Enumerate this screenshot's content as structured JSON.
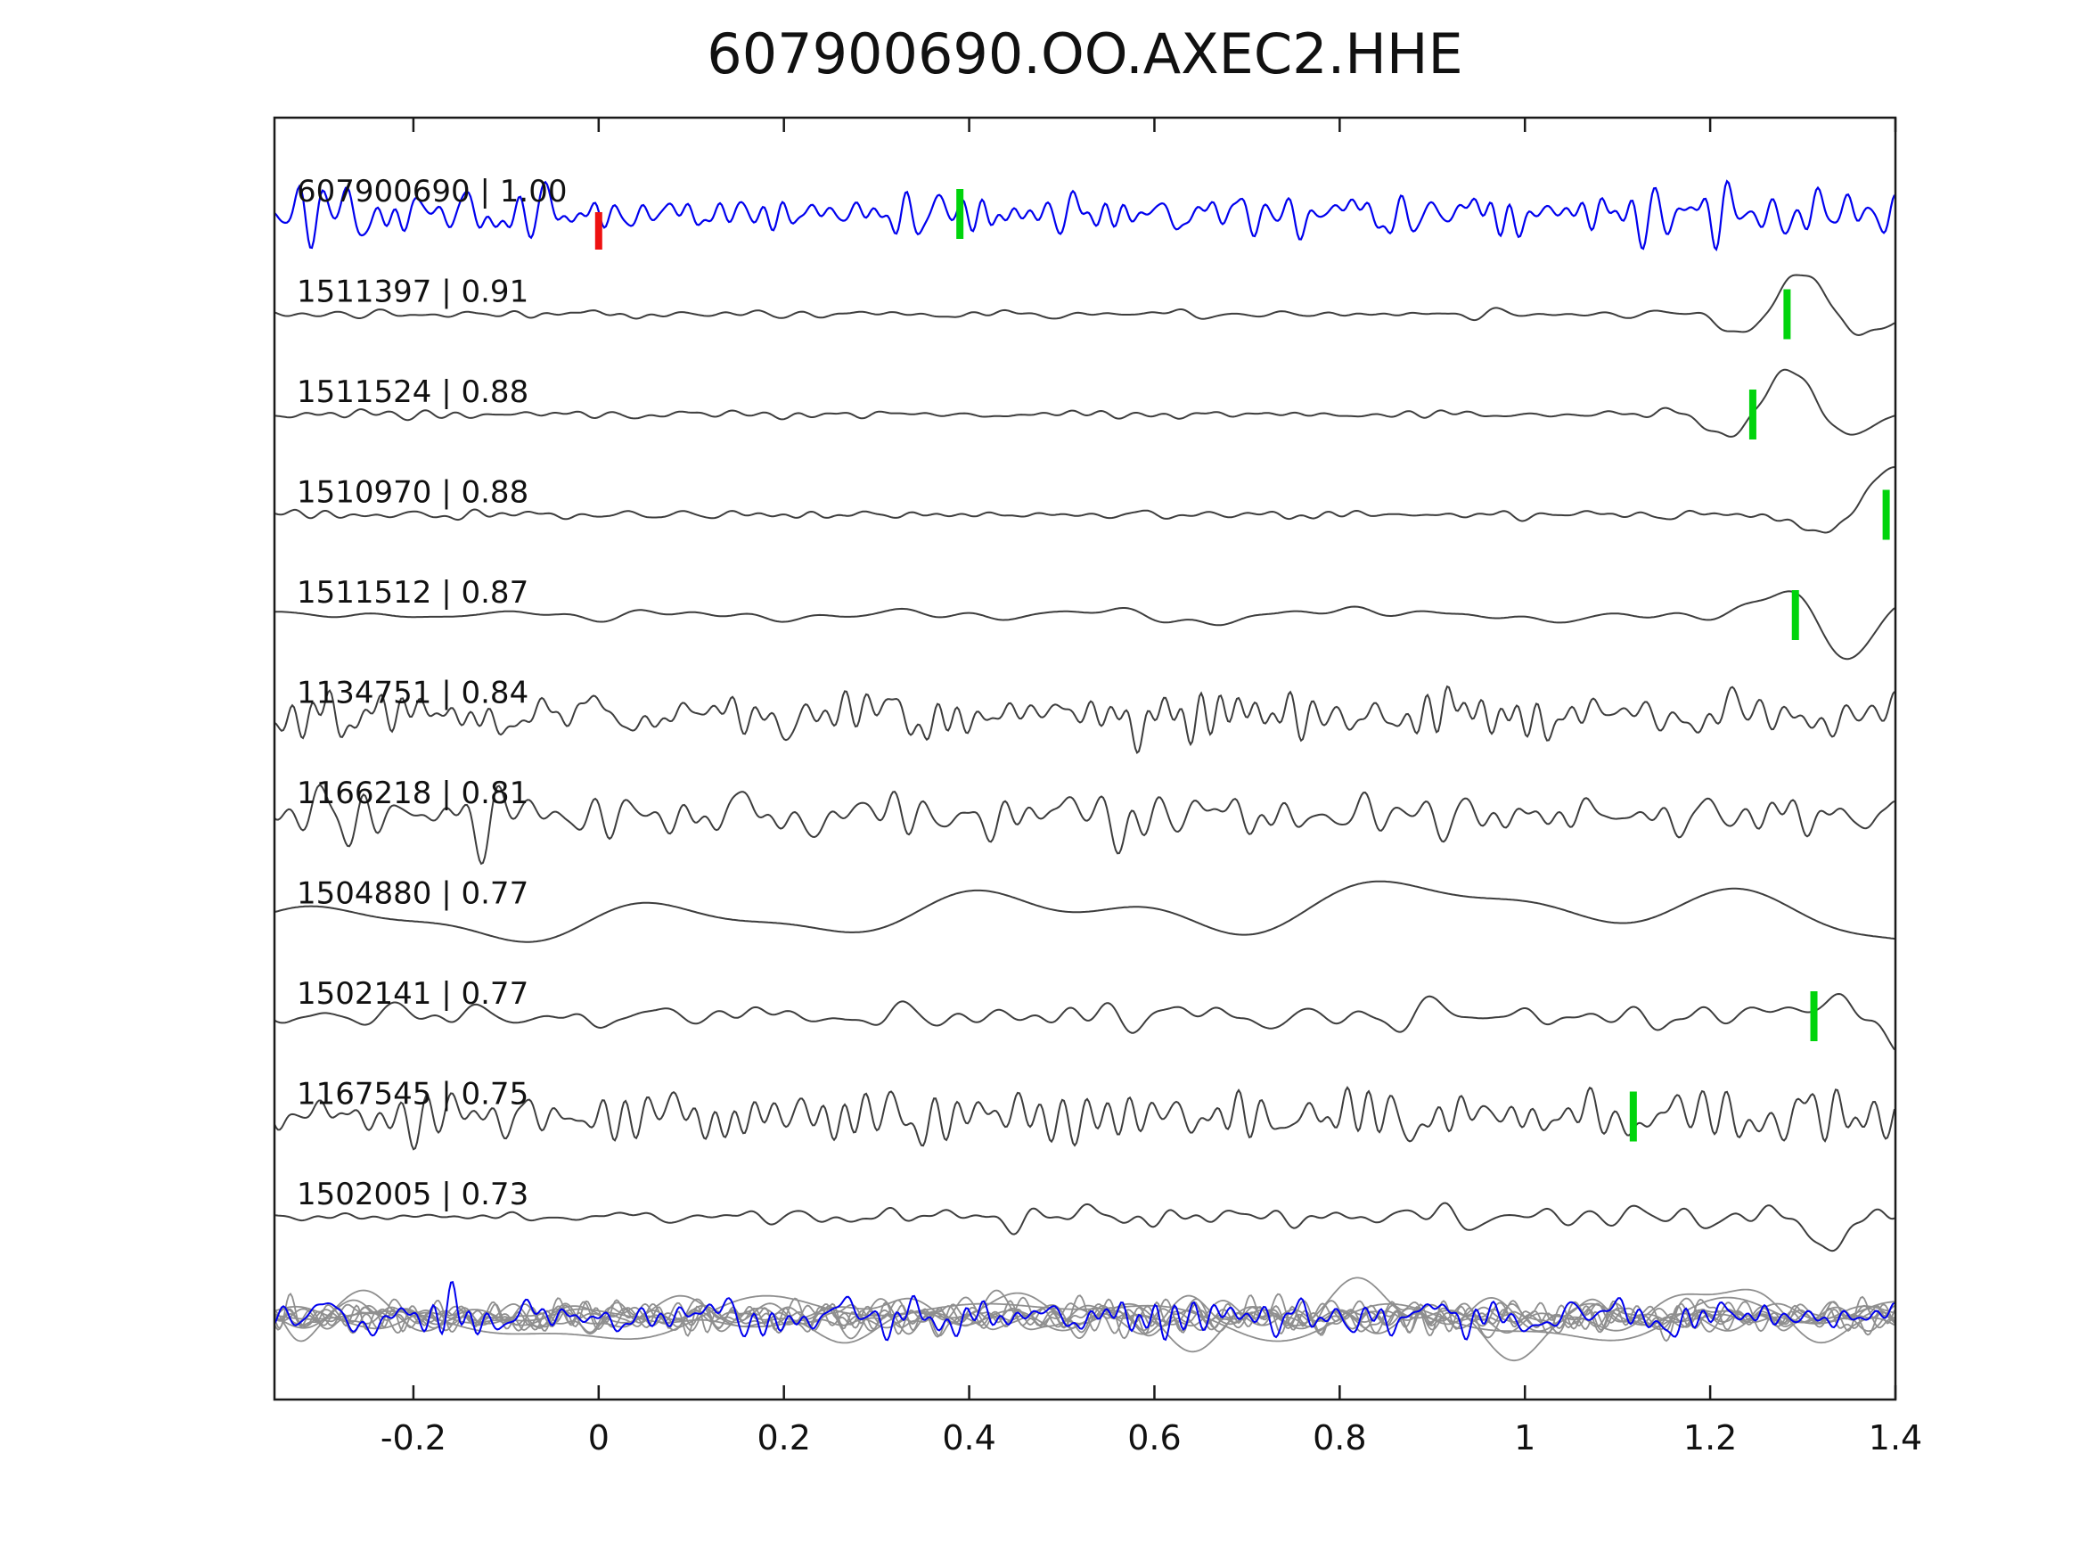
{
  "title": "607900690.OO.AXEC2.HHE",
  "colors": {
    "reference": "#0000ee",
    "match": "#3d3d3d",
    "overlay_gray": "#8f8f8f",
    "pick_green": "#00d40c",
    "pick_red": "#ee1111",
    "frame": "#1a1a1a",
    "text": "#111111"
  },
  "chart_data": {
    "type": "line",
    "title": "607900690.OO.AXEC2.HHE",
    "xlabel": "",
    "ylabel": "",
    "x_range": [
      -0.35,
      1.4
    ],
    "grid": false,
    "legend": "none",
    "xticks": [
      {
        "value": -0.2,
        "label": "-0.2"
      },
      {
        "value": 0,
        "label": "0"
      },
      {
        "value": 0.2,
        "label": "0.2"
      },
      {
        "value": 0.4,
        "label": "0.4"
      },
      {
        "value": 0.6,
        "label": "0.6"
      },
      {
        "value": 0.8,
        "label": "0.8"
      },
      {
        "value": 1,
        "label": "1"
      },
      {
        "value": 1.2,
        "label": "1.2"
      },
      {
        "value": 1.4,
        "label": "1.4"
      }
    ],
    "traces": [
      {
        "id": "607900690",
        "correlation": 1.0,
        "label": "607900690 | 1.00",
        "role": "reference",
        "picks": [
          {
            "x": 0.0,
            "color": "pick_red"
          },
          {
            "x": 0.39,
            "color": "pick_green"
          }
        ],
        "waveform": {
          "seed": 11,
          "freq": 32,
          "amp": 13,
          "ramp": false,
          "arrival": null
        }
      },
      {
        "id": "1511397",
        "correlation": 0.91,
        "label": "1511397 | 0.91",
        "role": "match",
        "picks": [
          {
            "x": 1.283,
            "color": "pick_green"
          }
        ],
        "waveform": {
          "seed": 22,
          "freq": 20,
          "amp": 2.2,
          "ramp": false,
          "arrival": {
            "x0": 1.3,
            "amp": 46,
            "freq": 6.5,
            "width": 0.08,
            "phase": 1.6
          }
        }
      },
      {
        "id": "1511524",
        "correlation": 0.88,
        "label": "1511524 | 0.88",
        "role": "match",
        "picks": [
          {
            "x": 1.246,
            "color": "pick_green"
          }
        ],
        "waveform": {
          "seed": 33,
          "freq": 20,
          "amp": 2.2,
          "ramp": false,
          "arrival": {
            "x0": 1.285,
            "amp": 50,
            "freq": 6.5,
            "width": 0.08,
            "phase": 1.6
          }
        }
      },
      {
        "id": "1510970",
        "correlation": 0.88,
        "label": "1510970 | 0.88",
        "role": "match",
        "picks": [
          {
            "x": 1.39,
            "color": "pick_green"
          }
        ],
        "waveform": {
          "seed": 44,
          "freq": 20,
          "amp": 2.2,
          "ramp": false,
          "arrival": {
            "x0": 1.4,
            "amp": 55,
            "freq": 5.0,
            "width": 0.09,
            "phase": 1.57
          }
        }
      },
      {
        "id": "1511512",
        "correlation": 0.87,
        "label": "1511512 | 0.87",
        "role": "match",
        "picks": [
          {
            "x": 1.292,
            "color": "pick_green"
          }
        ],
        "waveform": {
          "seed": 55,
          "freq": 9,
          "amp": 4,
          "ramp": false,
          "arrival": {
            "x0": 1.35,
            "amp": 50,
            "freq": 6.0,
            "width": 0.085,
            "phase": -1.57
          }
        }
      },
      {
        "id": "1134751",
        "correlation": 0.84,
        "label": "1134751 | 0.84",
        "role": "match",
        "picks": [],
        "waveform": {
          "seed": 66,
          "freq": 28,
          "amp": 12.5,
          "ramp": false,
          "arrival": null
        }
      },
      {
        "id": "1166218",
        "correlation": 0.81,
        "label": "1166218 | 0.81",
        "role": "match",
        "picks": [],
        "waveform": {
          "seed": 77,
          "freq": 23,
          "amp": 12.5,
          "ramp": false,
          "arrival": null
        }
      },
      {
        "id": "1504880",
        "correlation": 0.77,
        "label": "1504880 | 0.77",
        "role": "match",
        "picks": [],
        "waveform": {
          "seed": 88,
          "freq": 3,
          "amp": 19,
          "ramp": false,
          "arrival": null
        }
      },
      {
        "id": "1502141",
        "correlation": 0.77,
        "label": "1502141 | 0.77",
        "role": "match",
        "picks": [
          {
            "x": 1.312,
            "color": "pick_green"
          }
        ],
        "waveform": {
          "seed": 99,
          "freq": 17,
          "amp": 6.5,
          "ramp": false,
          "arrival": {
            "x0": 1.4,
            "amp": 42,
            "freq": 4.5,
            "width": 0.1,
            "phase": -2.0
          }
        }
      },
      {
        "id": "1167545",
        "correlation": 0.75,
        "label": "1167545 | 0.75",
        "role": "match",
        "picks": [
          {
            "x": 1.117,
            "color": "pick_green"
          }
        ],
        "waveform": {
          "seed": 111,
          "freq": 27,
          "amp": 12.5,
          "ramp": false,
          "arrival": null
        }
      },
      {
        "id": "1502005",
        "correlation": 0.73,
        "label": "1502005 | 0.73",
        "role": "match",
        "picks": [],
        "waveform": {
          "seed": 122,
          "freq": 18,
          "amp": 8,
          "ramp": true,
          "arrival": {
            "x0": 1.325,
            "amp": 30,
            "freq": 5.0,
            "width": 0.05,
            "phase": -1.57
          }
        }
      }
    ],
    "overlay_row": {
      "description": "All matched traces superimposed in gray with blue reference trace on top",
      "gray_traces": [
        {
          "seed": 201,
          "freq": 30,
          "amp": 8,
          "ramp": false,
          "arrival": null
        },
        {
          "seed": 202,
          "freq": 24,
          "amp": 8,
          "ramp": false,
          "arrival": null
        },
        {
          "seed": 203,
          "freq": 18,
          "amp": 8,
          "ramp": false,
          "arrival": null
        },
        {
          "seed": 204,
          "freq": 12,
          "amp": 9,
          "ramp": false,
          "arrival": null
        },
        {
          "seed": 205,
          "freq": 7,
          "amp": 9,
          "ramp": false,
          "arrival": null
        },
        {
          "seed": 206,
          "freq": 3,
          "amp": 14,
          "ramp": false,
          "arrival": null
        },
        {
          "seed": 207,
          "freq": 27,
          "amp": 8,
          "ramp": false,
          "arrival": null
        },
        {
          "seed": 208,
          "freq": 21,
          "amp": 8,
          "ramp": false,
          "arrival": null
        },
        {
          "seed": 209,
          "freq": 15,
          "amp": 9,
          "ramp": false,
          "arrival": null
        },
        {
          "seed": 210,
          "freq": 5,
          "amp": 16,
          "ramp": false,
          "arrival": null
        }
      ],
      "reference_trace": {
        "seed": 300,
        "freq": 32,
        "amp": 10,
        "ramp": false,
        "arrival": null
      }
    }
  }
}
